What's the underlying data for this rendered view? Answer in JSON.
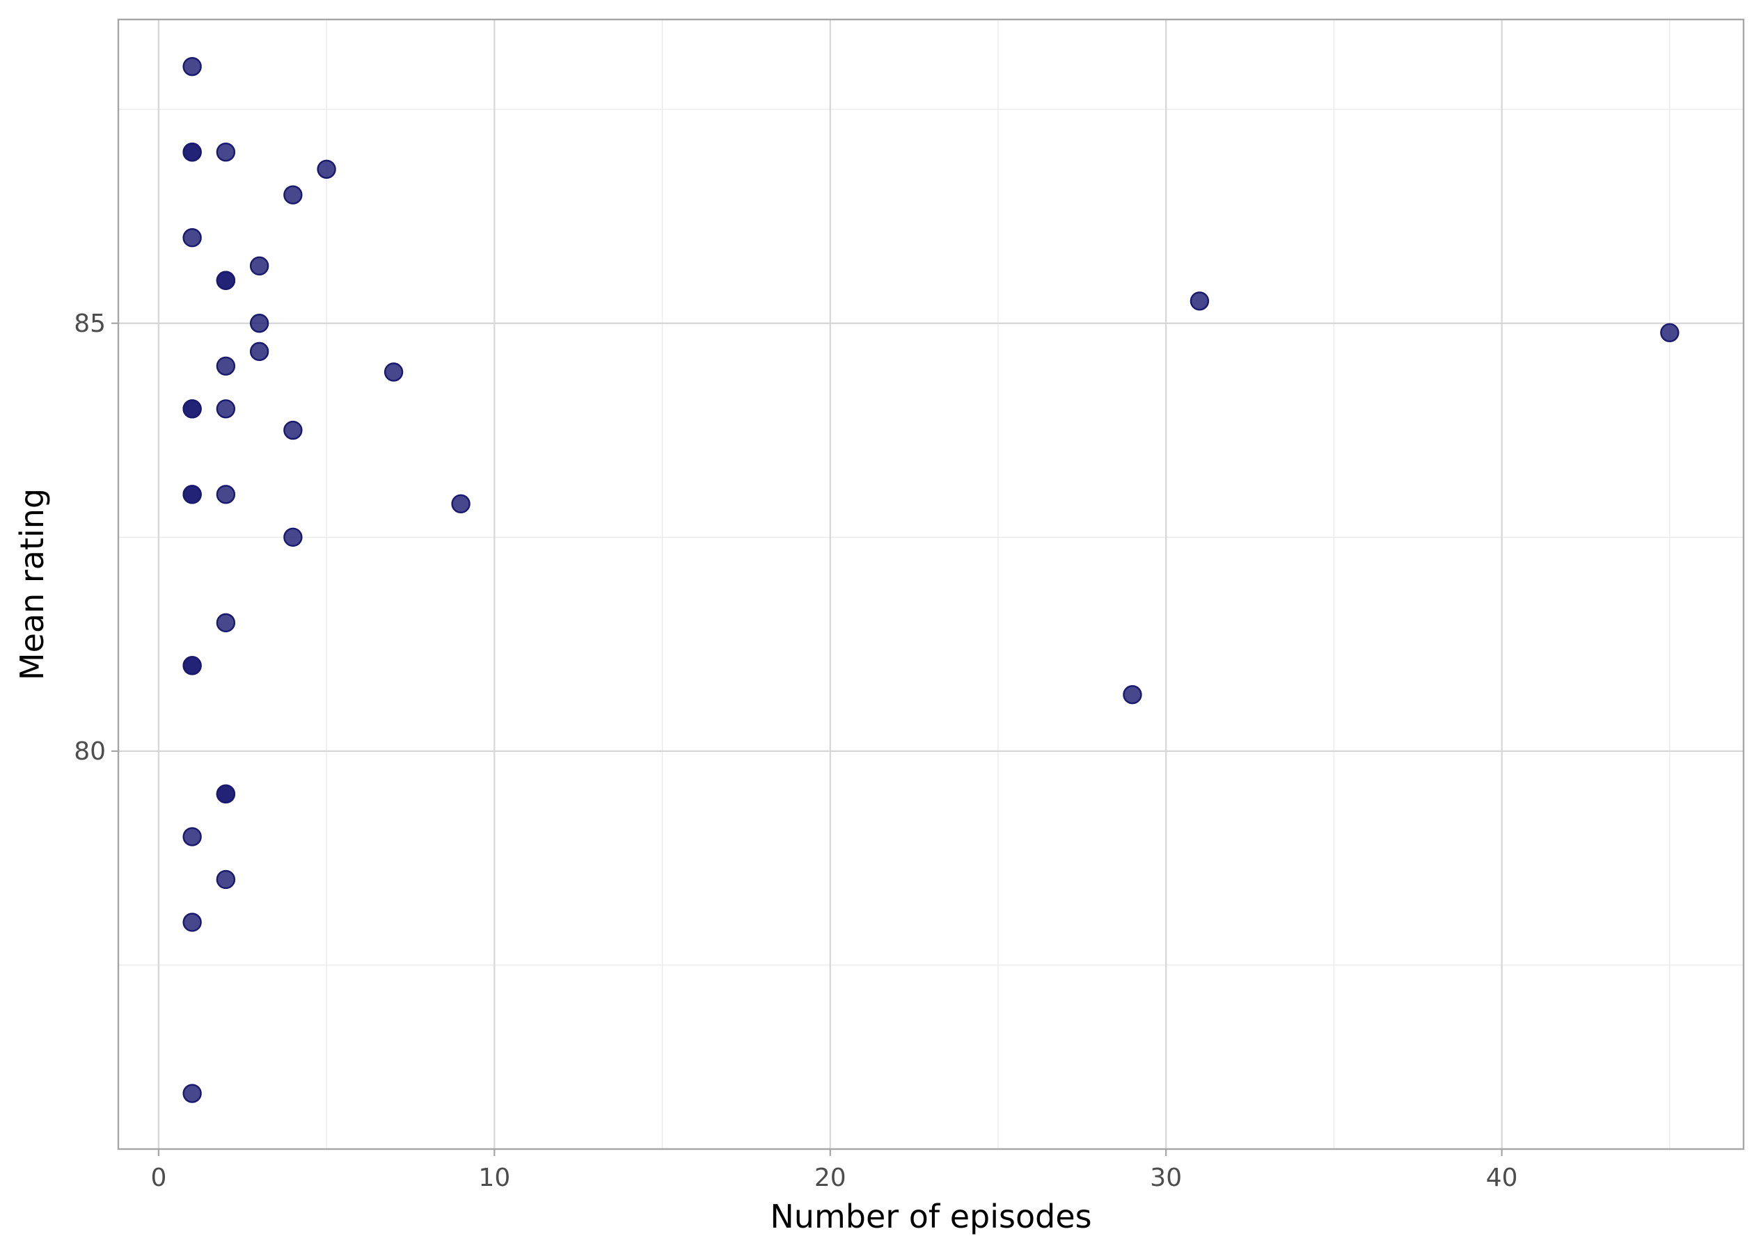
{
  "chart_data": {
    "type": "scatter",
    "title": "",
    "xlabel": "Number of episodes",
    "ylabel": "Mean rating",
    "xlim": [
      -1.2,
      47.2
    ],
    "ylim": [
      75.35,
      88.55
    ],
    "x_ticks": [
      0,
      10,
      20,
      30,
      40
    ],
    "x_tick_labels": [
      "0",
      "10",
      "20",
      "30",
      "40"
    ],
    "y_ticks": [
      80,
      85
    ],
    "y_tick_labels": [
      "80",
      "85"
    ],
    "x_minor_ticks": [
      5,
      15,
      25,
      35,
      45
    ],
    "y_minor_ticks": [
      77.5,
      82.5,
      87.5
    ],
    "grid": true,
    "legend": "none",
    "point_color": "#191970",
    "point_alpha": 0.8,
    "points": [
      {
        "x": 1,
        "y": 88.0
      },
      {
        "x": 1,
        "y": 87.0
      },
      {
        "x": 1,
        "y": 87.0
      },
      {
        "x": 2,
        "y": 87.0
      },
      {
        "x": 5,
        "y": 86.8
      },
      {
        "x": 4,
        "y": 86.5
      },
      {
        "x": 1,
        "y": 86.0
      },
      {
        "x": 3,
        "y": 85.67
      },
      {
        "x": 2,
        "y": 85.5
      },
      {
        "x": 2,
        "y": 85.5
      },
      {
        "x": 31,
        "y": 85.26
      },
      {
        "x": 3,
        "y": 85.0
      },
      {
        "x": 45,
        "y": 84.89
      },
      {
        "x": 3,
        "y": 84.67
      },
      {
        "x": 2,
        "y": 84.5
      },
      {
        "x": 7,
        "y": 84.43
      },
      {
        "x": 1,
        "y": 84.0
      },
      {
        "x": 1,
        "y": 84.0
      },
      {
        "x": 2,
        "y": 84.0
      },
      {
        "x": 4,
        "y": 83.75
      },
      {
        "x": 1,
        "y": 83.0
      },
      {
        "x": 1,
        "y": 83.0
      },
      {
        "x": 2,
        "y": 83.0
      },
      {
        "x": 9,
        "y": 82.89
      },
      {
        "x": 4,
        "y": 82.5
      },
      {
        "x": 2,
        "y": 81.5
      },
      {
        "x": 1,
        "y": 81.0
      },
      {
        "x": 1,
        "y": 81.0
      },
      {
        "x": 29,
        "y": 80.66
      },
      {
        "x": 2,
        "y": 79.5
      },
      {
        "x": 2,
        "y": 79.5
      },
      {
        "x": 1,
        "y": 79.0
      },
      {
        "x": 2,
        "y": 78.5
      },
      {
        "x": 1,
        "y": 78.0
      },
      {
        "x": 1,
        "y": 76.0
      }
    ]
  }
}
